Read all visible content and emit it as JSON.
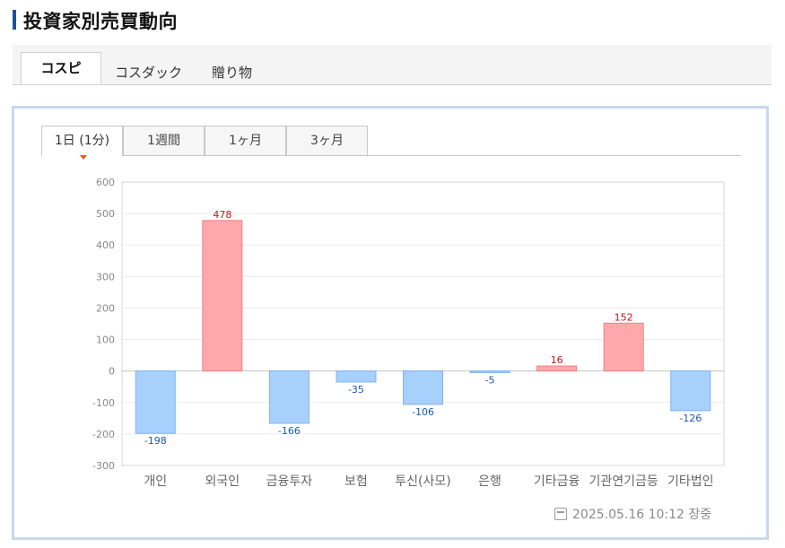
{
  "page_title": "投資家別売買動向",
  "market_tabs": [
    {
      "label": "コスピ",
      "active": true
    },
    {
      "label": "コスダック",
      "active": false
    },
    {
      "label": "贈り物",
      "active": false
    }
  ],
  "period_tabs": [
    {
      "label": "1日 (1分)",
      "active": true
    },
    {
      "label": "1週間",
      "active": false
    },
    {
      "label": "1ヶ月",
      "active": false
    },
    {
      "label": "3ヶ月",
      "active": false
    }
  ],
  "timestamp": "2025.05.16 10:12 장중",
  "colors": {
    "positive_fill": "#ffa8ab",
    "positive_stroke": "#f07f84",
    "negative_fill": "#a8d0fd",
    "negative_stroke": "#7fb2ee",
    "positive_label": "#c7121a",
    "negative_label": "#1b5ab5"
  },
  "chart_data": {
    "type": "bar",
    "categories": [
      "개인",
      "외국인",
      "금융투자",
      "보험",
      "투신(사모)",
      "은행",
      "기타금융",
      "기관연기금등",
      "기타법인"
    ],
    "values": [
      -198,
      478,
      -166,
      -35,
      -106,
      -5,
      16,
      152,
      -126
    ],
    "yticks": [
      600,
      500,
      400,
      300,
      200,
      100,
      0,
      -100,
      -200,
      -300
    ],
    "ylim": [
      -300,
      600
    ],
    "grid": true,
    "title": "",
    "xlabel": "",
    "ylabel": ""
  }
}
